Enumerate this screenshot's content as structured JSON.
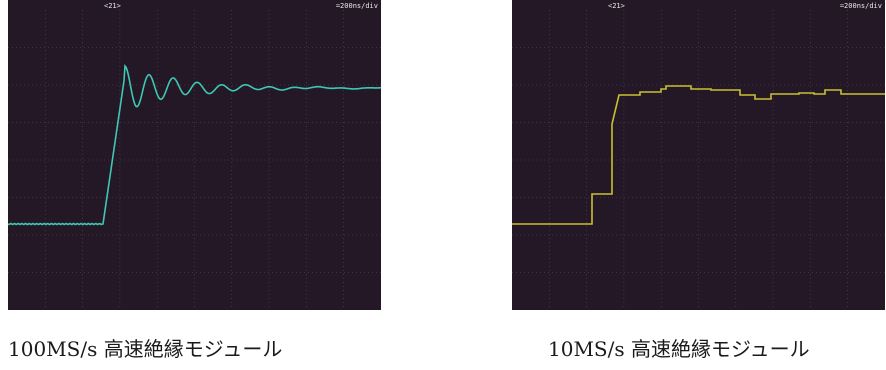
{
  "panels": [
    {
      "header_left": "<21>",
      "header_right": "=200ns/div",
      "trace_color": "#3fc7b5",
      "caption": "100MS/s 高速絶縁モジュール"
    },
    {
      "header_left": "<21>",
      "header_right": "=200ns/div",
      "trace_color": "#c9c032",
      "caption": "10MS/s 高速絶縁モジュール"
    }
  ]
}
